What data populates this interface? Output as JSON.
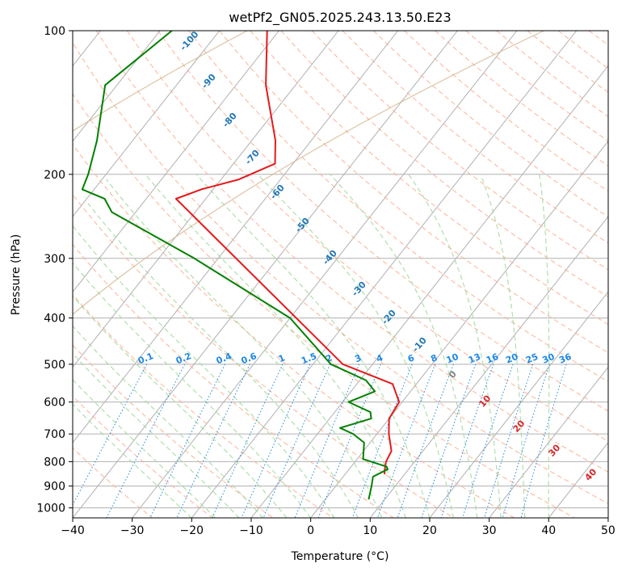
{
  "chart_data": {
    "type": "line",
    "chart_kind": "skew-T log-p diagram",
    "title": "wetPf2_GN05.2025.243.13.50.E23",
    "xlabel": "Temperature (°C)",
    "ylabel": "Pressure (hPa)",
    "xlim": [
      -40,
      50
    ],
    "ylim": [
      1050,
      100
    ],
    "yscale": "log",
    "xticks": [
      -40,
      -30,
      -20,
      -10,
      0,
      10,
      20,
      30,
      40,
      50
    ],
    "xtick_labels": [
      "−40",
      "−30",
      "−20",
      "−10",
      "0",
      "10",
      "20",
      "30",
      "40",
      "50"
    ],
    "yticks": [
      100,
      200,
      300,
      400,
      500,
      600,
      700,
      800,
      900,
      1000
    ],
    "ytick_labels": [
      "100",
      "200",
      "300",
      "400",
      "500",
      "600",
      "700",
      "800",
      "900",
      "1000"
    ],
    "grid": true,
    "series": [
      {
        "role": "temperature",
        "color": "#e41a1c",
        "points": [
          [
            100,
            -72
          ],
          [
            130,
            -65
          ],
          [
            170,
            -56
          ],
          [
            190,
            -53
          ],
          [
            205,
            -57
          ],
          [
            215,
            -62
          ],
          [
            225,
            -65
          ],
          [
            500,
            -15
          ],
          [
            550,
            -4
          ],
          [
            600,
            -0.5
          ],
          [
            650,
            0
          ],
          [
            700,
            2
          ],
          [
            760,
            4.7
          ],
          [
            800,
            5.2
          ],
          [
            830,
            6
          ],
          [
            850,
            6.6
          ]
        ]
      },
      {
        "role": "dewpoint",
        "color": "#008000",
        "points": [
          [
            100,
            -88
          ],
          [
            130,
            -92
          ],
          [
            170,
            -86
          ],
          [
            200,
            -83
          ],
          [
            215,
            -82
          ],
          [
            225,
            -77
          ],
          [
            240,
            -74
          ],
          [
            300,
            -54
          ],
          [
            400,
            -30
          ],
          [
            500,
            -17
          ],
          [
            540,
            -9
          ],
          [
            570,
            -6
          ],
          [
            600,
            -9
          ],
          [
            630,
            -4
          ],
          [
            650,
            -3
          ],
          [
            680,
            -7
          ],
          [
            700,
            -4
          ],
          [
            730,
            -1
          ],
          [
            790,
            1
          ],
          [
            820,
            6
          ],
          [
            830,
            6.5
          ],
          [
            860,
            5
          ],
          [
            900,
            6
          ],
          [
            960,
            7.3
          ]
        ]
      }
    ],
    "dry_adiabat_labels": [
      "-100",
      "-90",
      "-80",
      "-70",
      "-60",
      "-50",
      "-40",
      "-30",
      "-20",
      "-10"
    ],
    "moist_adiabat_labels": [
      "0",
      "10",
      "20",
      "30",
      "40"
    ],
    "mixing_ratio_labels": [
      "0.1",
      "0.2",
      "0.4",
      "0.6",
      "1",
      "1.5",
      "2",
      "3",
      "4",
      "6",
      "8",
      "10",
      "13",
      "16",
      "20",
      "25",
      "30",
      "36"
    ],
    "colors": {
      "isotherm": "#b0b0b0",
      "isobar": "#b0b0b0",
      "dry_adiabat": "#fcae91",
      "moist_adiabat": "#a1d99b",
      "mixing_ratio": "#1e88e5",
      "dry_label": "#1f77b4",
      "moist_label": "#d62728",
      "zero_label": "#808080",
      "mixing_label": "#1e88e5",
      "theta_e": "#d2b48c"
    }
  }
}
